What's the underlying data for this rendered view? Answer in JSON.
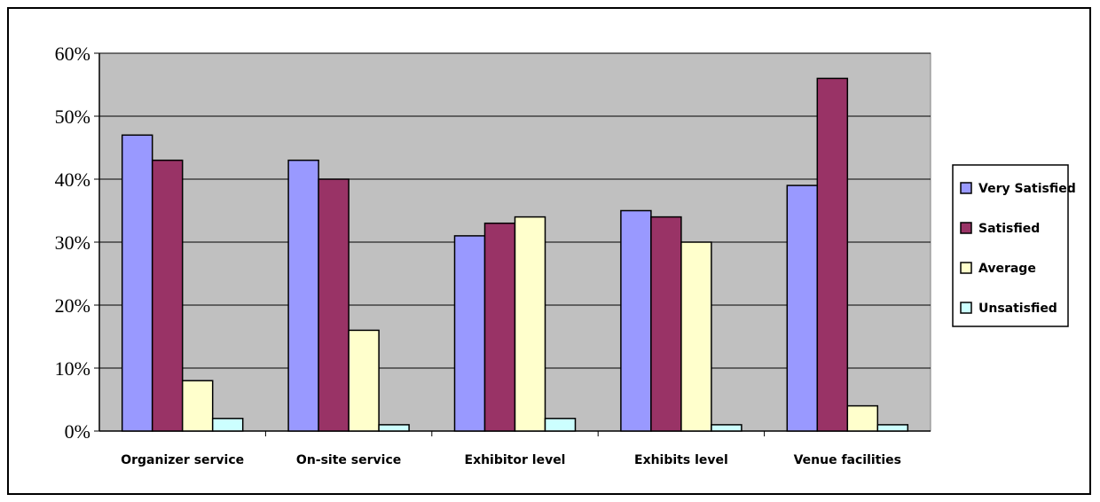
{
  "chart_data": {
    "type": "bar",
    "title": "",
    "xlabel": "",
    "ylabel": "",
    "categories": [
      "Organizer service",
      "On-site service",
      "Exhibitor level",
      "Exhibits level",
      "Venue facilities"
    ],
    "series": [
      {
        "name": "Very Satisfied",
        "color": "#9999ff",
        "values": [
          47,
          43,
          31,
          35,
          39
        ]
      },
      {
        "name": "Satisfied",
        "color": "#993366",
        "values": [
          43,
          40,
          33,
          34,
          56
        ]
      },
      {
        "name": "Average",
        "color": "#ffffcc",
        "values": [
          8,
          16,
          34,
          30,
          4
        ]
      },
      {
        "name": "Unsatisfied",
        "color": "#ccffff",
        "values": [
          2,
          1,
          2,
          1,
          1
        ]
      }
    ],
    "ylim": [
      0,
      60
    ],
    "yticks": [
      0,
      10,
      20,
      30,
      40,
      50,
      60
    ],
    "ytick_labels": [
      "0%",
      "10%",
      "20%",
      "30%",
      "40%",
      "50%",
      "60%"
    ],
    "grid": true,
    "plot_background": "#c0c0c0",
    "legend_position": "right"
  }
}
